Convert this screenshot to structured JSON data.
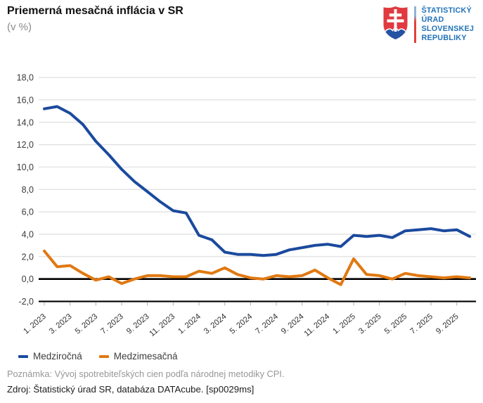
{
  "header": {
    "title": "Priemerná mesačná inflácia v SR",
    "subtitle": "(v %)"
  },
  "logo": {
    "org_lines": [
      "ŠTATISTICKÝ",
      "ÚRAD",
      "SLOVENSKEJ",
      "REPUBLIKY"
    ],
    "shield_red": "#e03a40",
    "shield_blue": "#2553a4",
    "text_blue": "#2273b8"
  },
  "legend": [
    {
      "label": "Medziročná",
      "color": "#1b4a9e"
    },
    {
      "label": "Medzimesačná",
      "color": "#e07912"
    }
  ],
  "footer": {
    "note": "Poznámka: Vývoj spotrebiteľských cien podľa národnej metodiky CPI.",
    "source": "Zdroj: Štatistický úrad SR, databáza DATAcube. [sp0029ms]"
  },
  "chart_data": {
    "type": "line",
    "title": "Priemerná mesačná inflácia v SR (v %)",
    "x_frequency": "monthly",
    "n_points": 34,
    "x_tick_labels": [
      "1. 2023",
      "3. 2023",
      "5. 2023",
      "7. 2023",
      "9. 2023",
      "11. 2023",
      "1. 2024",
      "3. 2024",
      "5. 2024",
      "7. 2024",
      "9. 2024",
      "11. 2024",
      "1. 2025",
      "3. 2025",
      "5. 2025",
      "7. 2025",
      "9. 2025"
    ],
    "ylim": [
      -2,
      18
    ],
    "ytick_step": 2,
    "ytick_decimal": "comma",
    "grid": true,
    "zero_line": true,
    "legend_position": "bottom-left",
    "series": [
      {
        "name": "Medziročná",
        "color": "#1b4a9e",
        "values": [
          15.2,
          15.4,
          14.8,
          13.8,
          12.3,
          11.1,
          9.8,
          8.7,
          7.8,
          6.9,
          6.1,
          5.9,
          3.9,
          3.5,
          2.4,
          2.2,
          2.2,
          2.1,
          2.2,
          2.6,
          2.8,
          3.0,
          3.1,
          2.9,
          3.9,
          3.8,
          3.9,
          3.7,
          4.3,
          4.4,
          4.5,
          4.3,
          4.4,
          3.8
        ]
      },
      {
        "name": "Medzimesačná",
        "color": "#e07912",
        "values": [
          2.5,
          1.1,
          1.2,
          0.5,
          -0.1,
          0.2,
          -0.4,
          0.0,
          0.3,
          0.3,
          0.2,
          0.2,
          0.7,
          0.5,
          1.0,
          0.4,
          0.1,
          0.0,
          0.3,
          0.2,
          0.3,
          0.8,
          0.1,
          -0.5,
          1.8,
          0.4,
          0.3,
          0.0,
          0.5,
          0.3,
          0.2,
          0.1,
          0.2,
          0.1
        ]
      }
    ]
  }
}
